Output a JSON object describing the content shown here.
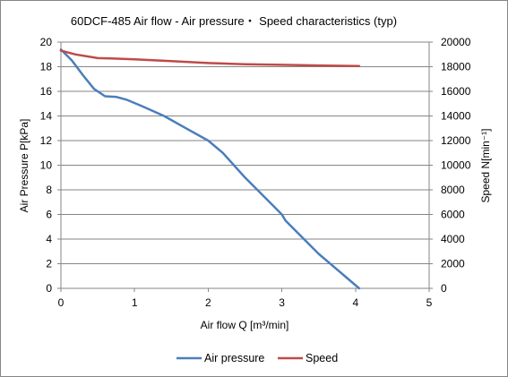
{
  "chart_data": {
    "type": "line",
    "title": "60DCF-485  Air flow - Air pressure・ Speed characteristics (typ)",
    "xlabel": "Air flow  Q [m³/min]",
    "ylabel": "Air Pressure  P[kPa]",
    "y2label": "Speed  N[min⁻¹]",
    "xlim": [
      0,
      5
    ],
    "ylim": [
      0,
      20
    ],
    "y2lim": [
      0,
      20000
    ],
    "xticks": [
      0,
      1,
      2,
      3,
      4,
      5
    ],
    "yticks": [
      0,
      2,
      4,
      6,
      8,
      10,
      12,
      14,
      16,
      18,
      20
    ],
    "y2ticks": [
      0,
      2000,
      4000,
      6000,
      8000,
      10000,
      12000,
      14000,
      16000,
      18000,
      20000
    ],
    "grid": "horizontal",
    "legend": "bottom",
    "series": [
      {
        "name": "Air pressure",
        "axis": "left",
        "color": "#4a7ebb",
        "x": [
          0,
          0.15,
          0.3,
          0.45,
          0.6,
          0.75,
          0.9,
          1.1,
          1.4,
          1.7,
          2.0,
          2.2,
          2.5,
          2.8,
          3.0,
          3.05,
          3.5,
          4.05
        ],
        "y": [
          19.4,
          18.5,
          17.3,
          16.2,
          15.6,
          15.55,
          15.3,
          14.8,
          14.0,
          13.0,
          12.0,
          11.0,
          9.0,
          7.2,
          6.0,
          5.5,
          2.8,
          0
        ]
      },
      {
        "name": "Speed",
        "axis": "right",
        "color": "#be4b48",
        "x": [
          0,
          0.2,
          0.5,
          0.8,
          1.0,
          1.5,
          2.0,
          2.5,
          3.0,
          3.5,
          4.05
        ],
        "y": [
          19300,
          19000,
          18700,
          18650,
          18600,
          18450,
          18300,
          18200,
          18150,
          18100,
          18050
        ]
      }
    ]
  }
}
